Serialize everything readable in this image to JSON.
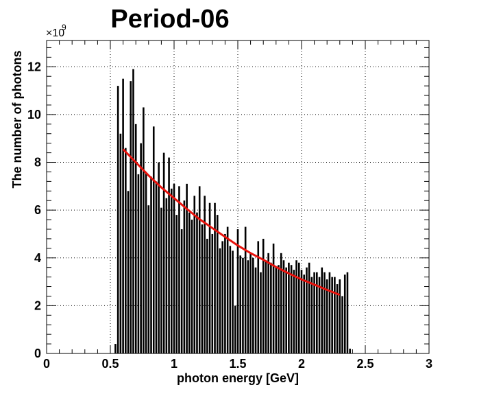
{
  "chart_data": {
    "type": "bar",
    "title": "Period-06",
    "xlabel": "photon energy [GeV]",
    "ylabel": "The number of photons",
    "y_multiplier_label": "×10",
    "y_multiplier_exponent": "9",
    "xlim": [
      0,
      3
    ],
    "ylim": [
      0,
      13.1
    ],
    "xticks": [
      0,
      0.5,
      1,
      1.5,
      2,
      2.5,
      3
    ],
    "xtick_labels": [
      "0",
      "0.5",
      "1",
      "1.5",
      "2",
      "2.5",
      "3"
    ],
    "yticks": [
      0,
      2,
      4,
      6,
      8,
      10,
      12
    ],
    "ytick_labels": [
      "0",
      "2",
      "4",
      "6",
      "8",
      "10",
      "12"
    ],
    "grid": true,
    "bar_color": "#000000",
    "fit_color": "#e8120c",
    "bars": {
      "x": [
        0.54,
        0.56,
        0.58,
        0.6,
        0.62,
        0.64,
        0.66,
        0.68,
        0.7,
        0.72,
        0.74,
        0.76,
        0.78,
        0.8,
        0.82,
        0.84,
        0.86,
        0.88,
        0.9,
        0.92,
        0.94,
        0.96,
        0.98,
        1.0,
        1.02,
        1.04,
        1.06,
        1.08,
        1.1,
        1.12,
        1.14,
        1.16,
        1.18,
        1.2,
        1.22,
        1.24,
        1.26,
        1.28,
        1.3,
        1.32,
        1.34,
        1.36,
        1.38,
        1.4,
        1.42,
        1.44,
        1.46,
        1.48,
        1.5,
        1.52,
        1.54,
        1.56,
        1.58,
        1.6,
        1.62,
        1.64,
        1.66,
        1.68,
        1.7,
        1.72,
        1.74,
        1.76,
        1.78,
        1.8,
        1.82,
        1.84,
        1.86,
        1.88,
        1.9,
        1.92,
        1.94,
        1.96,
        1.98,
        2.0,
        2.02,
        2.04,
        2.06,
        2.08,
        2.1,
        2.12,
        2.14,
        2.16,
        2.18,
        2.2,
        2.22,
        2.24,
        2.26,
        2.28,
        2.3,
        2.32,
        2.34,
        2.36,
        2.38
      ],
      "values": [
        0.4,
        11.2,
        9.2,
        11.5,
        8.6,
        6.8,
        11.4,
        11.9,
        9.6,
        7.5,
        8.8,
        10.3,
        7.6,
        6.2,
        7.4,
        9.5,
        7.2,
        8.0,
        6.1,
        8.4,
        6.5,
        8.2,
        6.9,
        7.1,
        5.8,
        7.0,
        5.2,
        6.4,
        7.1,
        5.9,
        5.6,
        6.6,
        5.9,
        7.0,
        5.4,
        6.6,
        4.8,
        6.3,
        5.0,
        6.3,
        5.8,
        4.4,
        4.7,
        5.0,
        5.3,
        4.5,
        4.3,
        2.0,
        5.2,
        4.1,
        4.0,
        5.3,
        3.9,
        4.2,
        4.0,
        3.6,
        4.7,
        3.4,
        4.8,
        3.9,
        4.2,
        3.8,
        4.6,
        3.6,
        3.7,
        4.2,
        3.9,
        3.6,
        3.8,
        3.7,
        3.5,
        3.9,
        3.8,
        3.5,
        3.3,
        3.6,
        3.8,
        3.2,
        3.4,
        3.4,
        3.2,
        3.6,
        3.4,
        3.1,
        3.4,
        3.2,
        3.2,
        2.9,
        3.1,
        2.4,
        3.3,
        3.4,
        0.2
      ]
    },
    "fit": {
      "name": "fit",
      "x": [
        0.6,
        0.7,
        0.8,
        0.9,
        1.0,
        1.1,
        1.2,
        1.3,
        1.4,
        1.5,
        1.6,
        1.7,
        1.8,
        1.9,
        2.0,
        2.1,
        2.2,
        2.3
      ],
      "y": [
        8.55,
        8.0,
        7.45,
        6.95,
        6.5,
        6.05,
        5.62,
        5.25,
        4.88,
        4.52,
        4.2,
        3.92,
        3.62,
        3.35,
        3.1,
        2.88,
        2.66,
        2.45
      ]
    }
  }
}
